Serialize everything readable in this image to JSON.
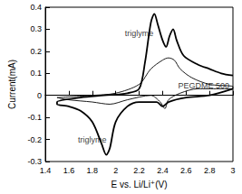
{
  "chart_data": {
    "type": "line",
    "x_label": "E vs. Li/Li⁺(V)",
    "y_label": "Current(mA)",
    "xlim": [
      1.4,
      3.0
    ],
    "xticks": [
      1.4,
      1.6,
      1.8,
      2,
      2.2,
      2.4,
      2.6,
      2.8,
      3
    ],
    "ylim": [
      -0.3,
      0.4
    ],
    "yticks": [
      -0.3,
      -0.2,
      -0.1,
      0,
      0.1,
      0.2,
      0.3,
      0.4
    ],
    "grid": false,
    "series": [
      {
        "name": "triglyme",
        "color": "#000000",
        "x": [
          3.0,
          2.8,
          2.6,
          2.45,
          2.4,
          2.35,
          2.2,
          2.1,
          2.0,
          1.95,
          1.92,
          1.88,
          1.8,
          1.7,
          1.6,
          1.5,
          1.5,
          1.7,
          1.9,
          2.1,
          2.2,
          2.25,
          2.3,
          2.33,
          2.36,
          2.4,
          2.43,
          2.46,
          2.49,
          2.52,
          2.58,
          2.7,
          2.8,
          2.9,
          3.0
        ],
        "values": [
          0.03,
          0.0,
          -0.01,
          -0.03,
          -0.05,
          -0.03,
          -0.03,
          -0.05,
          -0.12,
          -0.24,
          -0.27,
          -0.22,
          -0.12,
          -0.07,
          -0.05,
          -0.04,
          -0.03,
          -0.01,
          0.0,
          0.01,
          0.03,
          0.15,
          0.33,
          0.37,
          0.32,
          0.25,
          0.22,
          0.27,
          0.3,
          0.25,
          0.18,
          0.14,
          0.12,
          0.1,
          0.09
        ]
      },
      {
        "name": "PEGDME 500",
        "color": "#000000",
        "x": [
          1.5,
          1.8,
          2.0,
          2.2,
          2.3,
          2.4,
          2.45,
          2.5,
          2.55,
          2.65,
          2.8,
          3.0,
          3.0,
          2.7,
          2.55,
          2.45,
          2.42,
          2.38,
          2.3,
          2.1,
          1.95,
          1.8,
          1.6,
          1.5
        ],
        "values": [
          -0.01,
          0.0,
          0.01,
          0.05,
          0.12,
          0.16,
          0.17,
          0.16,
          0.12,
          0.08,
          0.05,
          0.04,
          0.03,
          0.03,
          0.01,
          -0.02,
          -0.06,
          -0.03,
          0.0,
          -0.02,
          -0.04,
          -0.03,
          -0.02,
          -0.01
        ]
      }
    ],
    "annotations": [
      {
        "text": "triglyme",
        "x": 2.2,
        "y": 0.28
      },
      {
        "text": "triglyme",
        "x": 1.8,
        "y": -0.2
      },
      {
        "text": "PEGDME 500",
        "x": 2.75,
        "y": 0.045
      }
    ]
  }
}
